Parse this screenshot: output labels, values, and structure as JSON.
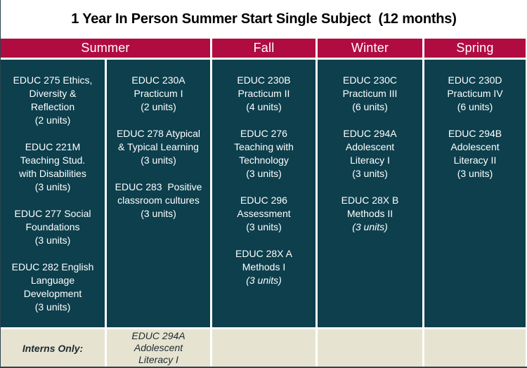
{
  "title": "1 Year In Person Summer Start Single Subject  (12 months)",
  "colors": {
    "header_bg": "#B00C42",
    "header_text": "#FFFFFF",
    "body_bg": "#0D3F4D",
    "body_text": "#FFFFFF",
    "footer_bg": "#E6E3D0",
    "footer_text": "#1E2A30",
    "divider": "#FFFFFF",
    "title_color": "#000000",
    "strip": "#2E444B",
    "page_border": "#2A454E"
  },
  "header": {
    "columns": [
      {
        "label": "Summer",
        "span": 2
      },
      {
        "label": "Fall",
        "span": 1
      },
      {
        "label": "Winter",
        "span": 1
      },
      {
        "label": "Spring",
        "span": 1
      }
    ]
  },
  "body_columns": [
    {
      "season": "Summer",
      "courses": [
        {
          "lines": [
            "EDUC 275 Ethics,",
            "Diversity &",
            "Reflection",
            "(2 units)"
          ]
        },
        {
          "lines": [
            "EDUC 221M",
            "Teaching Stud.",
            "with Disabilities",
            "(3 units)"
          ]
        },
        {
          "lines": [
            "EDUC 277 Social",
            "Foundations",
            "(3 units)"
          ]
        },
        {
          "lines": [
            "EDUC 282 English",
            "Language",
            "Development",
            "(3 units)"
          ]
        }
      ]
    },
    {
      "season": "Summer",
      "courses": [
        {
          "lines": [
            "EDUC 230A",
            "Practicum I",
            "(2 units)"
          ]
        },
        {
          "lines": [
            "EDUC 278 Atypical",
            "& Typical Learning",
            "(3 units)"
          ]
        },
        {
          "lines": [
            "EDUC 283  Positive",
            "classroom cultures",
            "(3 units)"
          ]
        }
      ]
    },
    {
      "season": "Fall",
      "courses": [
        {
          "lines": [
            "EDUC 230B",
            "Practicum II",
            "(4 units)"
          ]
        },
        {
          "lines": [
            "EDUC 276",
            "Teaching with",
            "Technology",
            "(3 units)"
          ]
        },
        {
          "lines": [
            "EDUC 296",
            "Assessment",
            "(3 units)"
          ]
        },
        {
          "lines": [
            "EDUC 28X A",
            "Methods I",
            "(3 units)"
          ],
          "italic_lines": [
            2
          ]
        }
      ]
    },
    {
      "season": "Winter",
      "courses": [
        {
          "lines": [
            "EDUC 230C",
            "Practicum III",
            "(6 units)"
          ]
        },
        {
          "lines": [
            "EDUC 294A",
            "Adolescent",
            "Literacy I",
            "(3 units)"
          ]
        },
        {
          "lines": [
            "EDUC 28X B",
            "Methods II",
            "(3 units)"
          ],
          "italic_lines": [
            2
          ]
        }
      ]
    },
    {
      "season": "Spring",
      "courses": [
        {
          "lines": [
            "EDUC 230D",
            "Practicum IV",
            "(6 units)"
          ]
        },
        {
          "lines": [
            "EDUC 294B",
            "Adolescent",
            "Literacy II",
            "(3 units)"
          ]
        }
      ]
    }
  ],
  "footer": {
    "label": "Interns Only:",
    "course": {
      "lines": [
        "EDUC 294A",
        "Adolescent",
        "Literacy I"
      ]
    }
  }
}
